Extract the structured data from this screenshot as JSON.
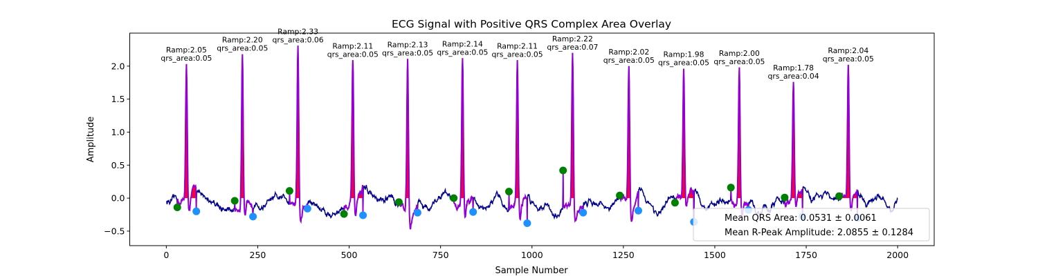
{
  "chart_data": {
    "type": "line",
    "title": "ECG Signal with Positive QRS Complex Area Overlay",
    "xlabel": "Sample Number",
    "ylabel": "Amplitude",
    "xlim": [
      -100,
      2100
    ],
    "ylim": [
      -0.72,
      2.5
    ],
    "xticks": [
      0,
      250,
      500,
      750,
      1000,
      1250,
      1500,
      1750,
      2000
    ],
    "yticks": [
      -0.5,
      0.0,
      0.5,
      1.0,
      1.5,
      2.0
    ],
    "grid": false,
    "legend_position": "lower-right",
    "colors": {
      "signal": "#00008b",
      "qrs_segment": "#9400d3",
      "area_fill": "#ff0033",
      "onset_marker": "#008000",
      "offset_marker": "#1e90ff"
    },
    "beats": [
      {
        "r": 55,
        "onset": 30,
        "offset": 82,
        "onset_y": -0.14,
        "offset_y": -0.2,
        "ramp": 2.05,
        "area": 0.05
      },
      {
        "r": 208,
        "onset": 187,
        "offset": 237,
        "onset_y": -0.04,
        "offset_y": -0.28,
        "ramp": 2.2,
        "area": 0.05
      },
      {
        "r": 360,
        "onset": 337,
        "offset": 386,
        "onset_y": 0.11,
        "offset_y": -0.16,
        "ramp": 2.33,
        "area": 0.06
      },
      {
        "r": 510,
        "onset": 486,
        "offset": 538,
        "onset_y": -0.24,
        "offset_y": -0.26,
        "ramp": 2.11,
        "area": 0.05
      },
      {
        "r": 660,
        "onset": 636,
        "offset": 687,
        "onset_y": -0.06,
        "offset_y": -0.22,
        "ramp": 2.13,
        "area": 0.05
      },
      {
        "r": 810,
        "onset": 786,
        "offset": 839,
        "onset_y": 0.0,
        "offset_y": -0.21,
        "ramp": 2.14,
        "area": 0.05
      },
      {
        "r": 960,
        "onset": 937,
        "offset": 987,
        "onset_y": 0.1,
        "offset_y": -0.38,
        "ramp": 2.11,
        "area": 0.05
      },
      {
        "r": 1111,
        "onset": 1085,
        "offset": 1140,
        "onset_y": 0.42,
        "offset_y": -0.22,
        "ramp": 2.22,
        "area": 0.07
      },
      {
        "r": 1265,
        "onset": 1240,
        "offset": 1291,
        "onset_y": 0.04,
        "offset_y": -0.19,
        "ramp": 2.02,
        "area": 0.05
      },
      {
        "r": 1415,
        "onset": 1391,
        "offset": 1443,
        "onset_y": -0.07,
        "offset_y": -0.36,
        "ramp": 1.98,
        "area": 0.05
      },
      {
        "r": 1567,
        "onset": 1544,
        "offset": 1592,
        "onset_y": 0.16,
        "offset_y": -0.18,
        "ramp": 2.0,
        "area": 0.05
      },
      {
        "r": 1715,
        "onset": 1691,
        "offset": 1740,
        "onset_y": 0.01,
        "offset_y": -0.28,
        "ramp": 1.78,
        "area": 0.04
      },
      {
        "r": 1865,
        "onset": 1840,
        "offset": 1890,
        "onset_y": 0.03,
        "offset_y": -0.3,
        "ramp": 2.04,
        "area": 0.05
      }
    ],
    "annotation_templates": {
      "ramp": "Ramp:",
      "area": "qrs_area:"
    },
    "legend": [
      "Mean QRS Area: 0.0531 ± 0.0061",
      "Mean R-Peak Amplitude: 2.0855 ± 0.1284"
    ]
  }
}
